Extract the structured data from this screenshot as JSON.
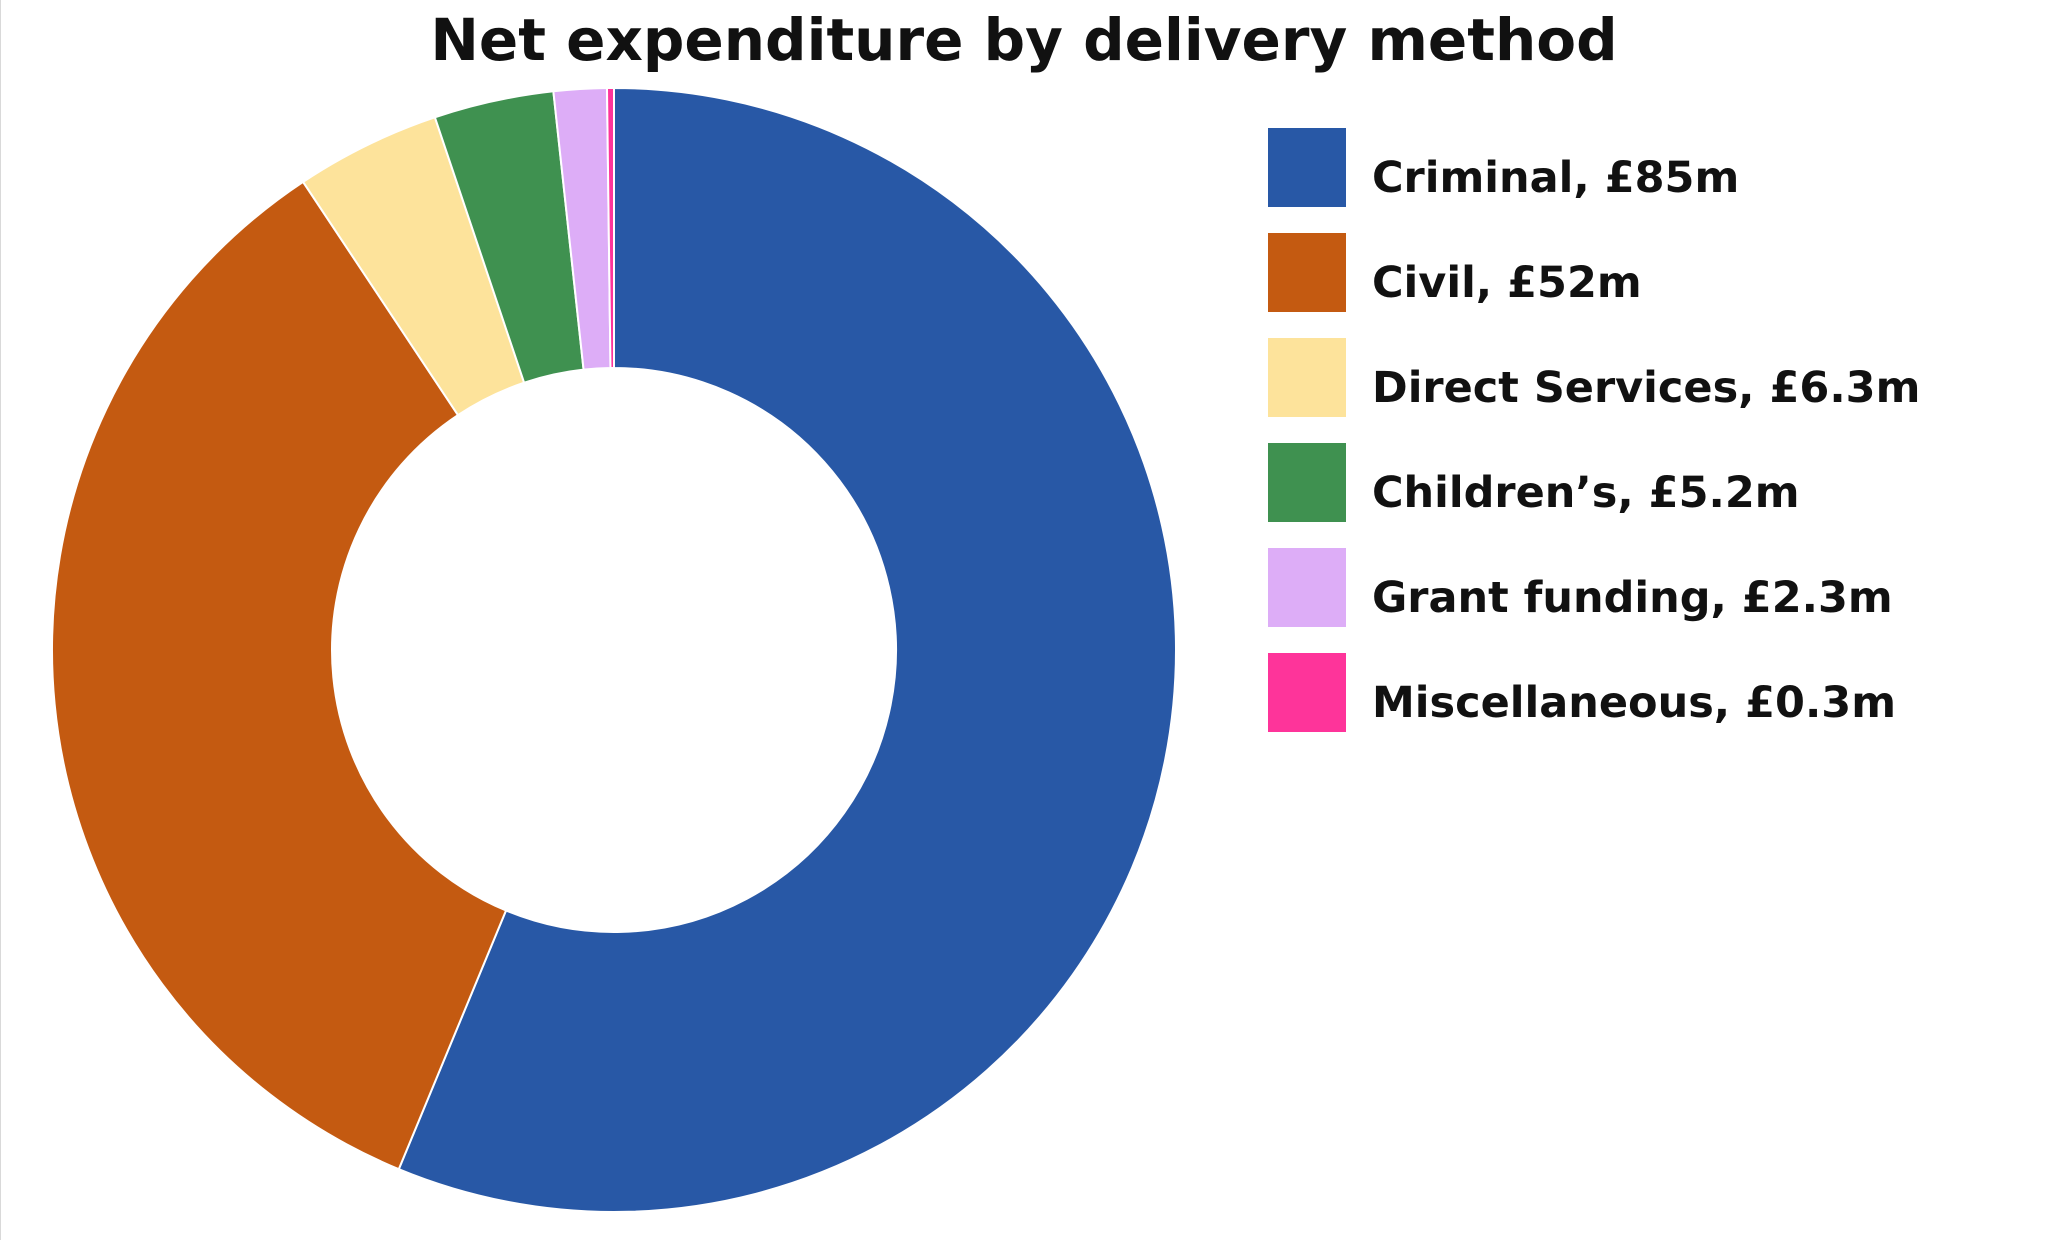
{
  "chart_data": {
    "type": "pie",
    "title": "Net expenditure by delivery method",
    "donut": true,
    "unit": "£m",
    "legend_position": "right",
    "slices": [
      {
        "label": "Criminal, £85m",
        "category": "Criminal",
        "value": 85,
        "color": "#2858a6"
      },
      {
        "label": "Civil, £52m",
        "category": "Civil",
        "value": 52,
        "color": "#c45a11"
      },
      {
        "label": "Direct Services, £6.3m",
        "category": "Direct Services",
        "value": 6.3,
        "color": "#fde39b"
      },
      {
        "label": "Children’s, £5.2m",
        "category": "Children’s",
        "value": 5.2,
        "color": "#3f9150"
      },
      {
        "label": "Grant funding, £2.3m",
        "category": "Grant funding",
        "value": 2.3,
        "color": "#ddadf7"
      },
      {
        "label": "Miscellaneous, £0.3m",
        "category": "Miscellaneous",
        "value": 0.3,
        "color": "#fe349a"
      }
    ]
  }
}
